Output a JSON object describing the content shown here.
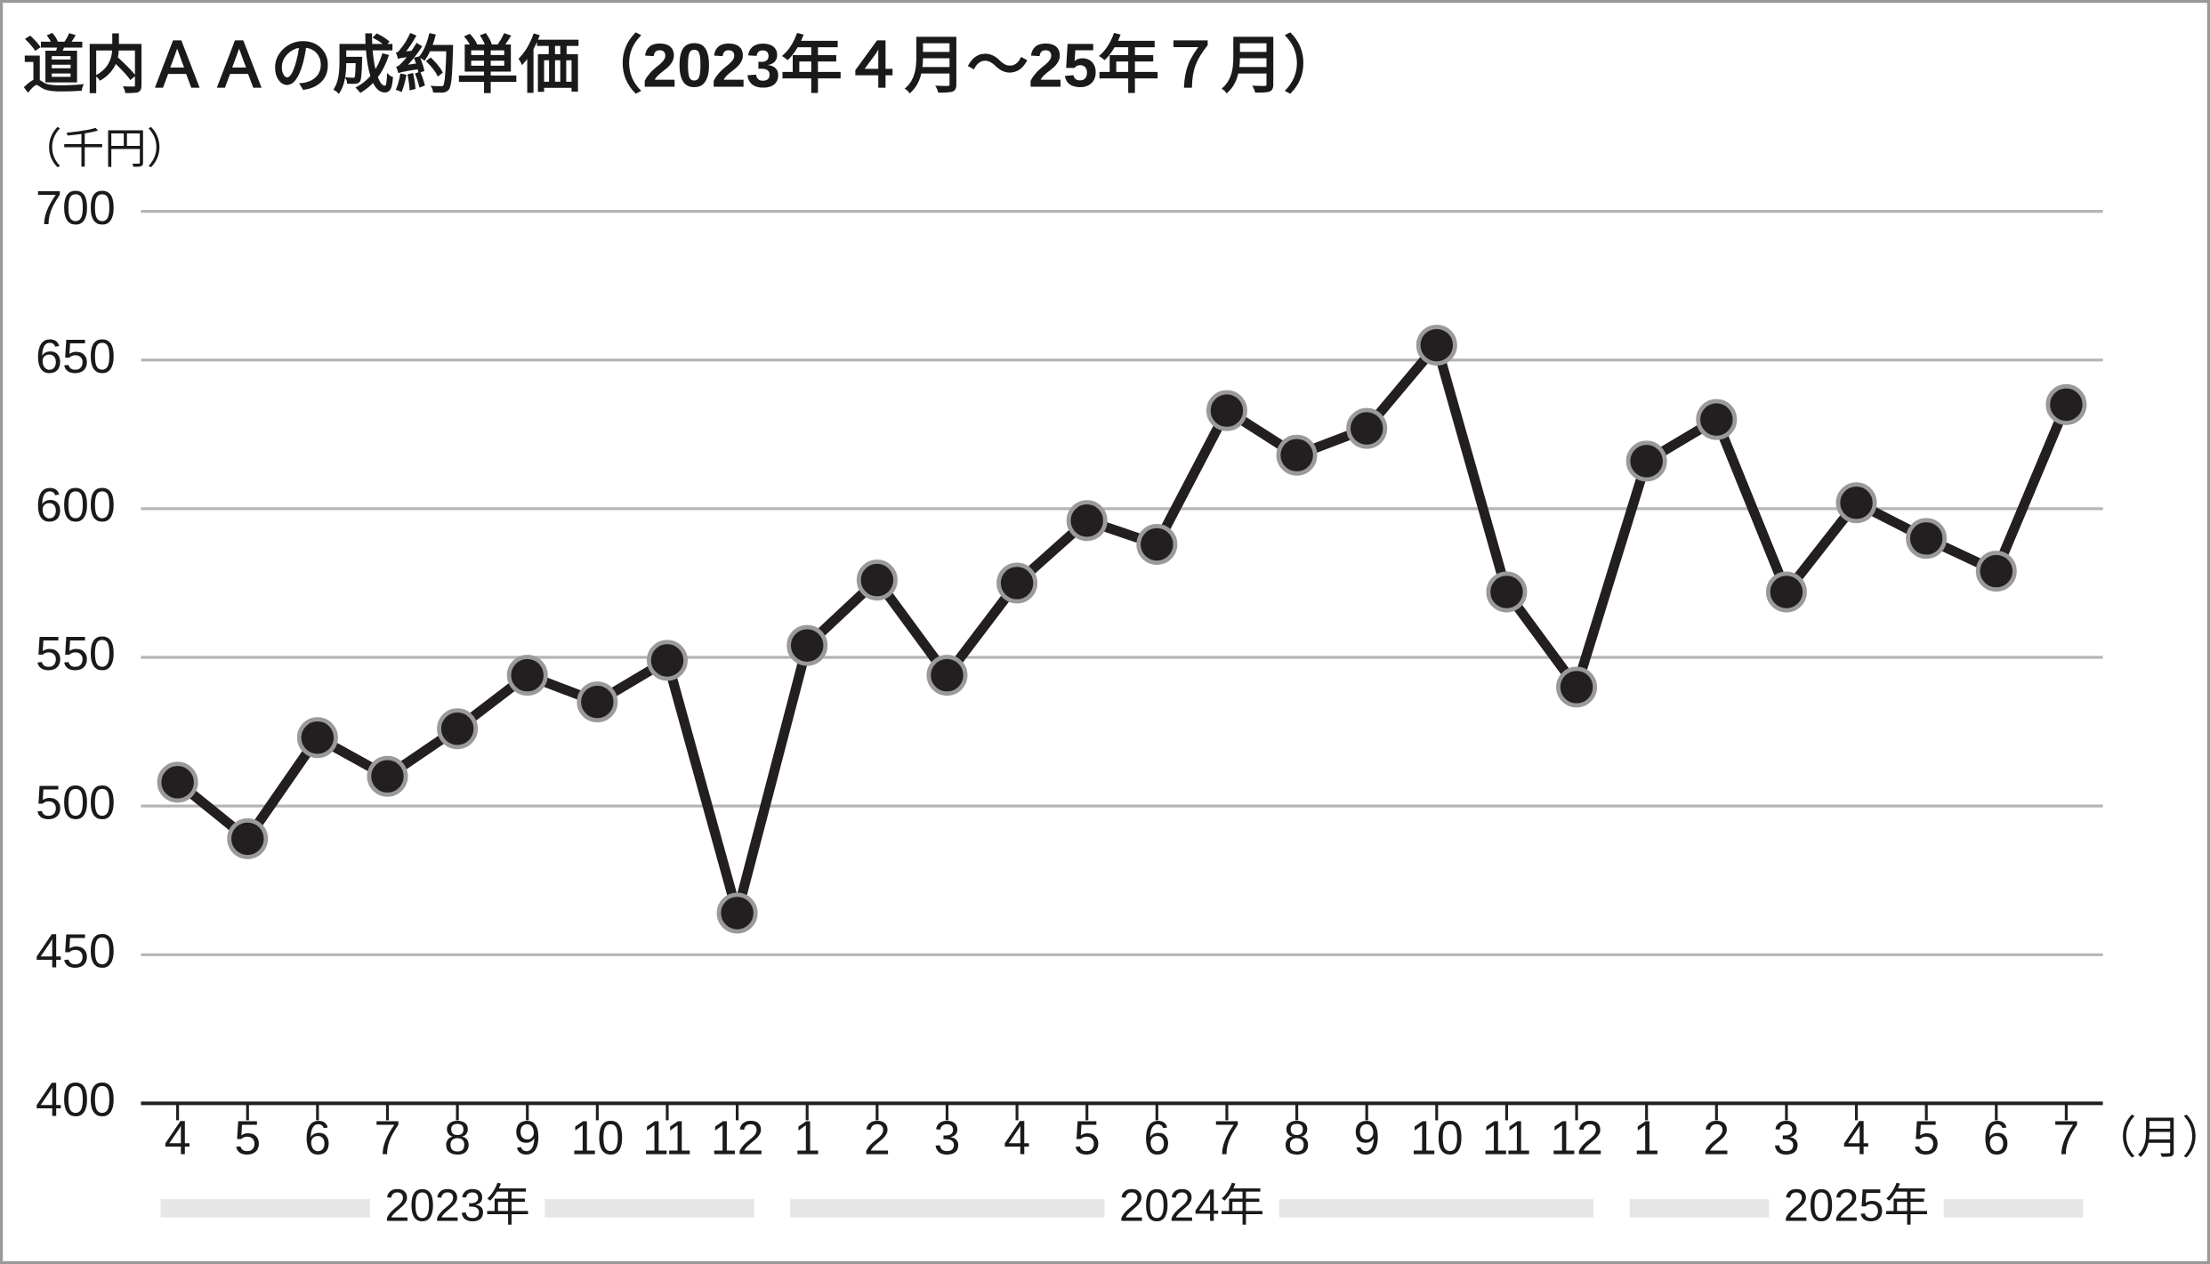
{
  "chart_data": {
    "type": "line",
    "title": "道内ＡＡの成約単価（2023年４月～25年７月）",
    "y_unit": "（千円）",
    "x_unit": "（月）",
    "categories": [
      "4",
      "5",
      "6",
      "7",
      "8",
      "9",
      "10",
      "11",
      "12",
      "1",
      "2",
      "3",
      "4",
      "5",
      "6",
      "7",
      "8",
      "9",
      "10",
      "11",
      "12",
      "1",
      "2",
      "3",
      "4",
      "5",
      "6",
      "7"
    ],
    "year_labels": [
      "2023年",
      "2024年",
      "2025年"
    ],
    "series": [
      {
        "color": "#231f20",
        "values": [
          508,
          489,
          523,
          510,
          526,
          544,
          535,
          549,
          464,
          554,
          576,
          544,
          575,
          596,
          588,
          633,
          618,
          627,
          655,
          572,
          540,
          616,
          630,
          572,
          602,
          590,
          579,
          635
        ]
      }
    ],
    "ylim": [
      400,
      700
    ],
    "yticks": [
      400,
      450,
      500,
      550,
      600,
      650,
      700
    ],
    "grid": true
  }
}
